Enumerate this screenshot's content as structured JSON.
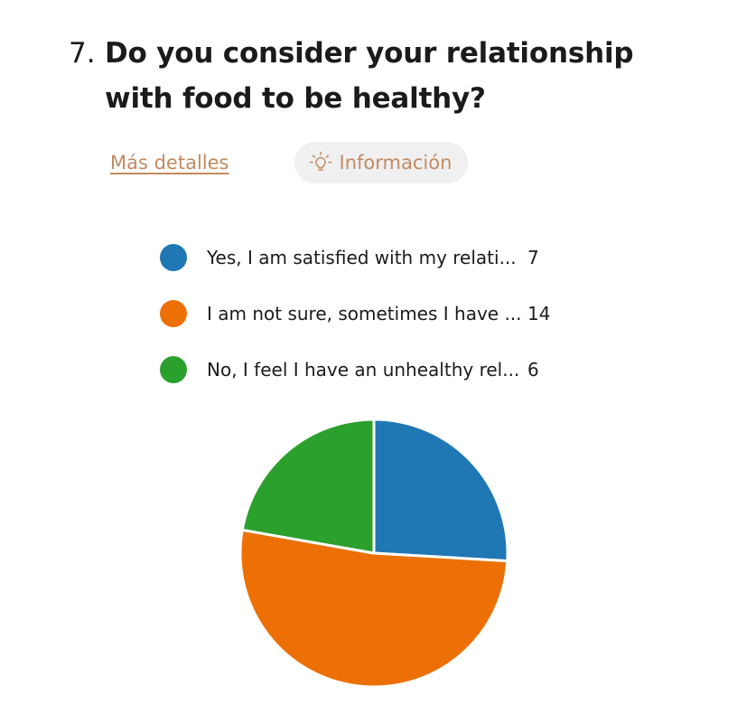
{
  "question": {
    "number": "7.",
    "title": "Do you consider your relationship with food to be healthy?"
  },
  "actions": {
    "details_label": "Más detalles",
    "info_label": "Información",
    "info_icon": "lightbulb-icon"
  },
  "colors": {
    "accent": "#c28a62",
    "pill_bg": "#f0f0f0"
  },
  "chart_data": {
    "type": "pie",
    "title": "",
    "legend_position": "top",
    "slices": [
      {
        "label": "Yes, I am satisfied with my relati...",
        "value": 7,
        "color": "#1f77b4"
      },
      {
        "label": "I am not sure, sometimes I have ...",
        "value": 14,
        "color": "#ec7005"
      },
      {
        "label": "No, I feel I have an unhealthy rel...",
        "value": 6,
        "color": "#2ca02c"
      }
    ]
  }
}
